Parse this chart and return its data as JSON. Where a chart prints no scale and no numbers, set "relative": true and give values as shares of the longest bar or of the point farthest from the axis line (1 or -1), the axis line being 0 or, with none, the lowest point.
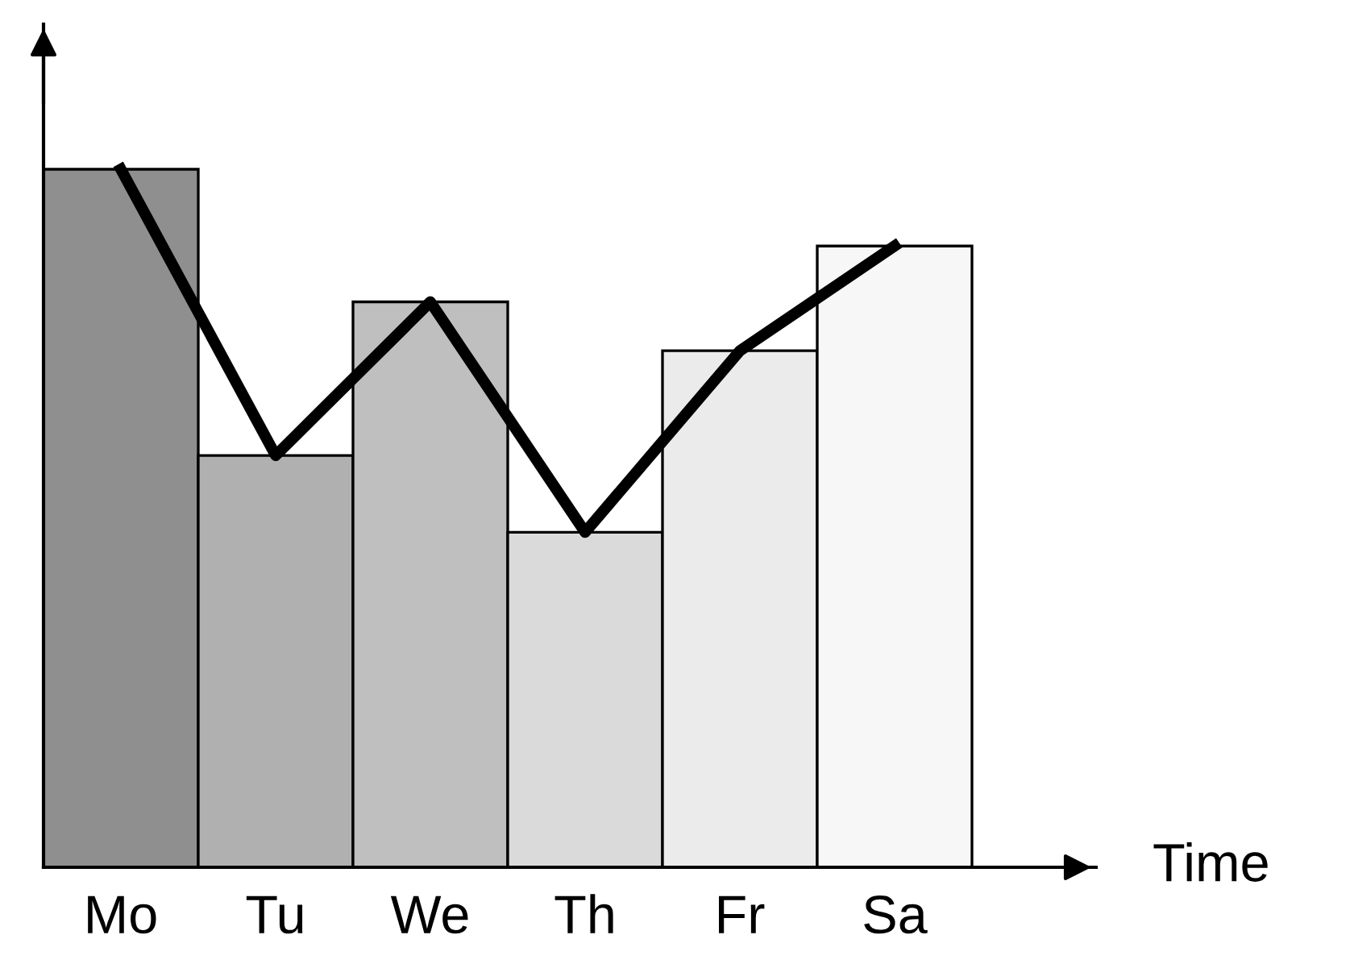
{
  "chart_data": {
    "type": "bar",
    "xlabel": "Time",
    "relative": true,
    "categories": [
      "Mo",
      "Tu",
      "We",
      "Th",
      "Fr",
      "Sa"
    ],
    "series": [
      {
        "colors": [
          "#8f8f8f",
          "#b0b0b0",
          "#bfbfbf",
          "#dadada",
          "#ebebeb",
          "#f7f7f7"
        ],
        "values": [
          1,
          0.59,
          0.81,
          0.48,
          0.74,
          0.89
        ]
      },
      {
        "type": "line",
        "color": "#000000",
        "values": [
          1,
          0.59,
          0.81,
          0.48,
          0.74,
          0.89
        ]
      }
    ],
    "grid": false,
    "legend": false,
    "marker": "none",
    "line_style": "solid"
  }
}
